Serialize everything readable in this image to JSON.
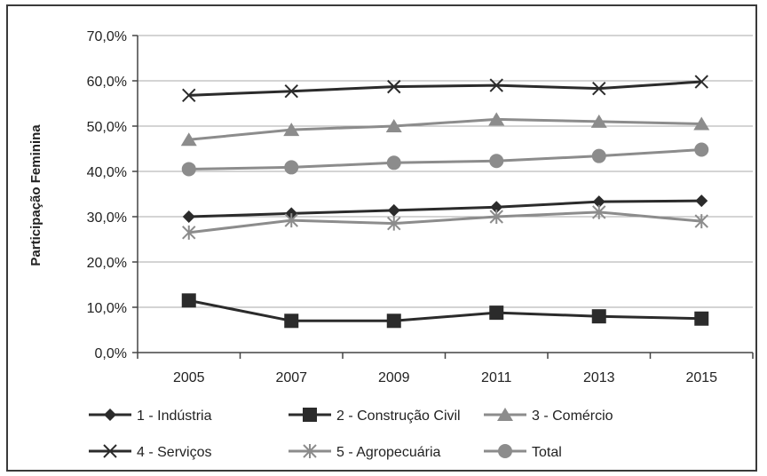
{
  "chart_data": {
    "type": "line",
    "title": "",
    "xlabel": "",
    "ylabel": "Participação Feminina",
    "categories": [
      "2005",
      "2007",
      "2009",
      "2011",
      "2013",
      "2015"
    ],
    "ylim": [
      0,
      70
    ],
    "yticks": [
      "0,0%",
      "10,0%",
      "20,0%",
      "30,0%",
      "40,0%",
      "50,0%",
      "60,0%",
      "70,0%"
    ],
    "grid": true,
    "legend_position": "bottom",
    "series": [
      {
        "name": "1 - Indústria",
        "marker": "diamond",
        "color": "#2b2b2b",
        "values": [
          30.0,
          30.7,
          31.4,
          32.1,
          33.3,
          33.5
        ]
      },
      {
        "name": "2 - Construção Civil",
        "marker": "square",
        "color": "#2b2b2b",
        "values": [
          11.5,
          7.0,
          7.0,
          8.8,
          8.0,
          7.5
        ]
      },
      {
        "name": "3 - Comércio",
        "marker": "triangle",
        "color": "#8c8c8c",
        "values": [
          47.0,
          49.2,
          50.0,
          51.5,
          51.0,
          50.5
        ]
      },
      {
        "name": "4 - Serviços",
        "marker": "x",
        "color": "#2b2b2b",
        "values": [
          56.8,
          57.7,
          58.7,
          59.0,
          58.3,
          59.8
        ]
      },
      {
        "name": "5 - Agropecuária",
        "marker": "asterisk",
        "color": "#8c8c8c",
        "values": [
          26.5,
          29.2,
          28.5,
          30.0,
          31.0,
          29.0
        ]
      },
      {
        "name": "Total",
        "marker": "circle",
        "color": "#8c8c8c",
        "values": [
          40.5,
          40.9,
          41.9,
          42.3,
          43.4,
          44.8
        ]
      }
    ]
  }
}
